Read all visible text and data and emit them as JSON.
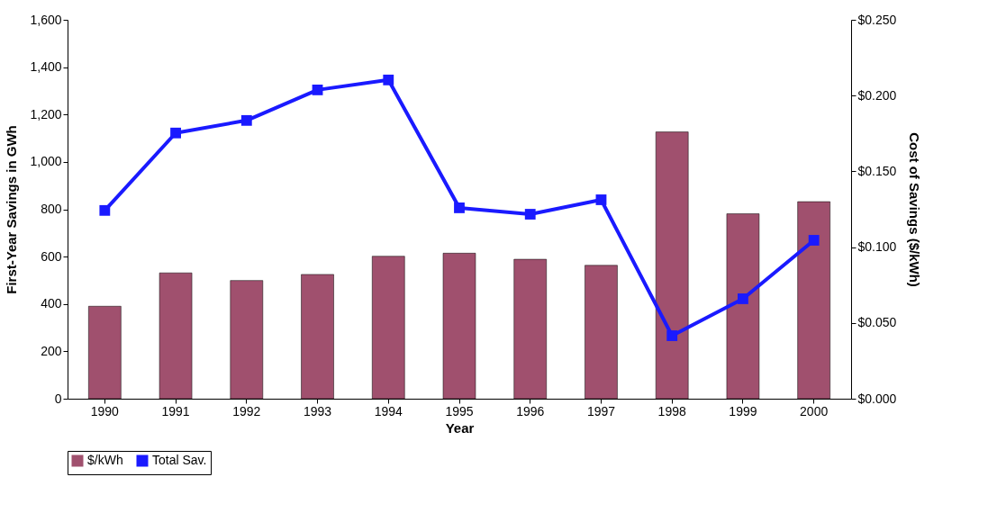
{
  "chart_data": {
    "type": "bar",
    "xlabel": "Year",
    "ylabel": "First-Year Savings in GWh",
    "y2label": "Cost of Savings ($/kWh)",
    "categories": [
      "1990",
      "1991",
      "1992",
      "1993",
      "1994",
      "1995",
      "1996",
      "1997",
      "1998",
      "1999",
      "2000"
    ],
    "series": [
      {
        "name": "$/kWh",
        "axis": "y2",
        "color": "#a0506e",
        "values": [
          0.061,
          0.083,
          0.078,
          0.082,
          0.094,
          0.096,
          0.092,
          0.088,
          0.176,
          0.122,
          0.13
        ]
      },
      {
        "name": "Total Sav.",
        "type": "line",
        "color": "#1a1aff",
        "values": [
          795,
          1122,
          1175,
          1304,
          1346,
          806,
          779,
          840,
          266,
          422,
          669
        ]
      }
    ],
    "ylim": [
      0,
      1600
    ],
    "yticks": [
      0,
      200,
      400,
      600,
      800,
      {
        "value": 1000,
        "label": "1,000"
      },
      {
        "value": 1200,
        "label": "1,200"
      },
      {
        "value": 1400,
        "label": "1,400"
      },
      {
        "value": 1600,
        "label": "1,600"
      }
    ],
    "y2lim": [
      0,
      0.25
    ],
    "y2ticks": [
      {
        "value": 0,
        "label": "$0.000"
      },
      {
        "value": 0.05,
        "label": "$0.050"
      },
      {
        "value": 0.1,
        "label": "$0.100"
      },
      {
        "value": 0.15,
        "label": "$0.150"
      },
      {
        "value": 0.2,
        "label": "$0.200"
      },
      {
        "value": 0.25,
        "label": "$0.250"
      }
    ],
    "legend": "bottom",
    "marker": "square",
    "line_style": "solid",
    "grid": false
  }
}
